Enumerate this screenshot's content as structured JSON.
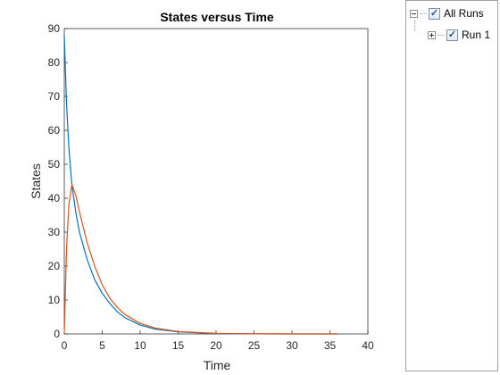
{
  "chart_data": {
    "type": "line",
    "title": "States versus Time",
    "xlabel": "Time",
    "ylabel": "States",
    "xlim": [
      0,
      40
    ],
    "ylim": [
      0,
      90
    ],
    "xticks": [
      0,
      5,
      10,
      15,
      20,
      25,
      30,
      35,
      40
    ],
    "yticks": [
      0,
      10,
      20,
      30,
      40,
      50,
      60,
      70,
      80,
      90
    ],
    "grid": false,
    "series": [
      {
        "color": "#0072BD",
        "x": [
          0,
          0.3,
          0.6,
          1,
          1.5,
          2,
          3,
          4,
          5,
          6,
          7,
          8,
          10,
          12,
          15,
          20,
          25,
          30,
          36
        ],
        "y": [
          88,
          68,
          55,
          44,
          36,
          30,
          22,
          16,
          12,
          9,
          6.5,
          4.8,
          2.6,
          1.4,
          0.6,
          0.1,
          0.02,
          0,
          0
        ]
      },
      {
        "color": "#D95319",
        "x": [
          0,
          0.3,
          0.6,
          1,
          1.5,
          2,
          3,
          4,
          5,
          6,
          7,
          8,
          10,
          12,
          15,
          20,
          25,
          30,
          36
        ],
        "y": [
          0,
          25,
          38,
          44,
          41,
          36,
          27,
          20,
          14.5,
          10.5,
          7.8,
          5.7,
          3.1,
          1.7,
          0.7,
          0.15,
          0.03,
          0,
          0
        ]
      }
    ]
  },
  "tree": {
    "all_runs": {
      "label": "All Runs",
      "checked": true
    },
    "run1": {
      "label": "Run 1",
      "checked": true
    }
  },
  "icons": {
    "check": "✓"
  }
}
